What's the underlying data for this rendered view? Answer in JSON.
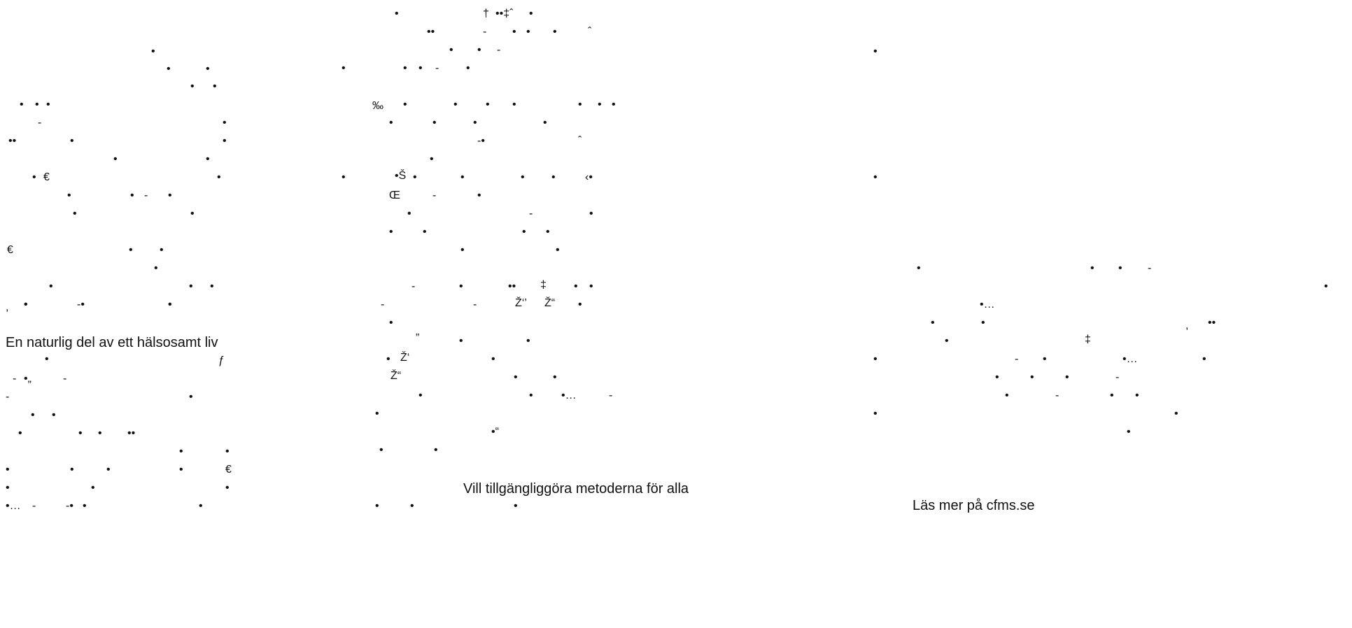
{
  "colors": {
    "background": "#ffffff",
    "text": "#111111"
  },
  "columns": [
    {
      "heading": "En naturlig del av ett hälsosamt liv",
      "glyphs": [
        "•",
        "•",
        "•",
        "•",
        "•",
        "•",
        "•",
        "•",
        "-",
        "•",
        "••",
        "•",
        "•",
        "•",
        "•",
        "•",
        "•",
        "€",
        "•",
        "•",
        "•",
        "-",
        "•",
        "•",
        "•",
        "€",
        "•",
        "•",
        "•",
        "•",
        "•",
        "•",
        "•",
        ",",
        "•",
        "-•",
        "•",
        "•",
        "ƒ",
        "-",
        "•„",
        "-",
        "-",
        "•",
        "•",
        "•",
        "•",
        "•",
        "•",
        "••",
        "•",
        "•",
        "•",
        "•",
        "•",
        "•",
        "€",
        "•",
        "•",
        "•",
        "•…",
        "-",
        "-•",
        "•",
        "•"
      ]
    },
    {
      "heading": "Vill tillgängliggöra metoderna för alla",
      "glyphs": [
        "•",
        "†",
        "••‡ˆ",
        "•",
        "••",
        "-",
        "•",
        "•",
        "•",
        "ˆ",
        "•",
        "•",
        "-",
        "•",
        "•",
        "•",
        "-",
        "•",
        "‰",
        "•",
        "•",
        "•",
        "•",
        "•",
        "•",
        "•",
        "•",
        "•",
        "•",
        "•",
        "-•",
        "ˆ",
        "•",
        "•",
        "•Š",
        "•",
        "•",
        "•",
        "•",
        "‹•",
        "Œ",
        "-",
        "•",
        "•",
        "-",
        "•",
        "•",
        "•",
        "•",
        "•",
        "•",
        "•",
        "-",
        "•",
        "••",
        "‡",
        "•",
        "•",
        "-",
        "-",
        "Ž‘’",
        "Ž“",
        "•",
        "•",
        "”",
        "•",
        "•",
        "•",
        "Ž‘",
        "•",
        "Ž“",
        "•",
        "•",
        "•",
        "•",
        "•…",
        "-",
        "•",
        "•“",
        "•",
        "•",
        "•",
        "•",
        "•"
      ]
    },
    {
      "heading": "Läs mer på cfms.se",
      "glyphs": [
        "•",
        "•",
        "•",
        "•",
        "•",
        "-",
        "•",
        "•…",
        "•",
        "•",
        ",",
        "••",
        "•",
        "‡",
        "•",
        "-",
        "•",
        "•…",
        "•",
        "•",
        "•",
        "•",
        "-",
        "•",
        "-",
        "•",
        "•",
        "•",
        "•",
        "•"
      ]
    }
  ]
}
